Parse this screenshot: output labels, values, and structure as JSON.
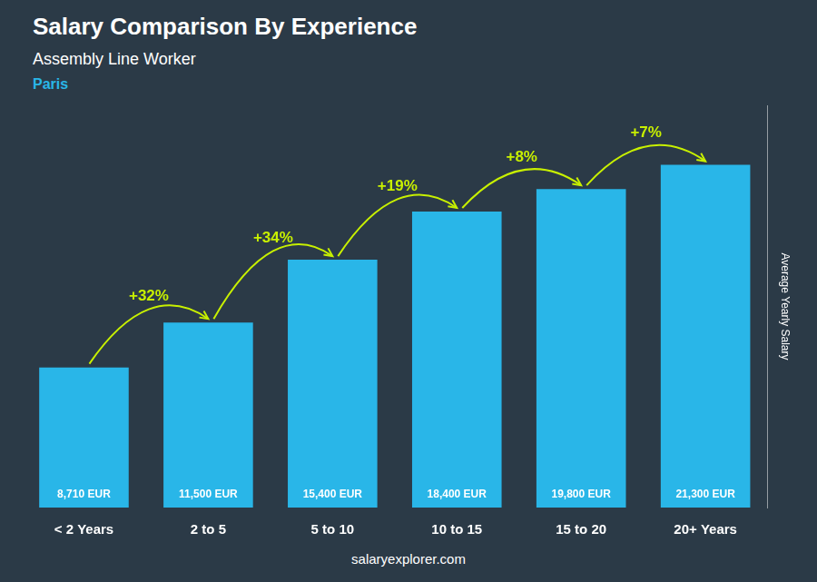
{
  "chart_data": {
    "type": "bar",
    "title": "Salary Comparison By Experience",
    "subtitle": "Assembly Line Worker",
    "city": {
      "text": "Paris",
      "color": "#29b6e8"
    },
    "categories": [
      "< 2 Years",
      "2 to 5",
      "5 to 10",
      "10 to 15",
      "15 to 20",
      "20+ Years"
    ],
    "values": [
      8710,
      11500,
      15400,
      18400,
      19800,
      21300
    ],
    "value_labels": [
      "8,710 EUR",
      "11,500 EUR",
      "15,400 EUR",
      "18,400 EUR",
      "19,800 EUR",
      "21,300 EUR"
    ],
    "data_labels": true,
    "color": "#29b6e8",
    "y_label": "Average Yearly Salary",
    "ylim": [
      0,
      25000
    ],
    "grid": false,
    "tick_labels": "x",
    "annotations": {
      "labels": [
        "+32%",
        "+34%",
        "+19%",
        "+8%",
        "+7%"
      ],
      "color": "#c8f000"
    },
    "footer": "salaryexplorer.com"
  }
}
